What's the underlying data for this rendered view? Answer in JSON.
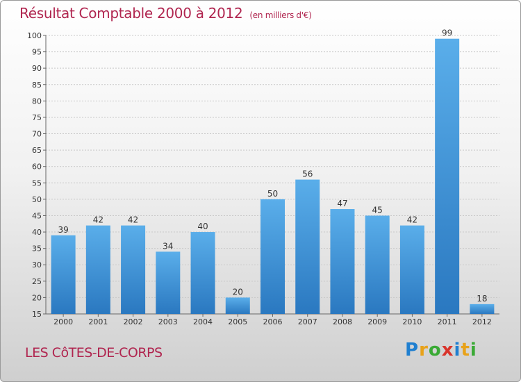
{
  "chart_data": {
    "type": "bar",
    "title": "Résultat Comptable 2000 à 2012",
    "subtitle": "(en milliers d'€)",
    "categories": [
      "2000",
      "2001",
      "2002",
      "2003",
      "2004",
      "2005",
      "2006",
      "2007",
      "2008",
      "2009",
      "2010",
      "2011",
      "2012"
    ],
    "values": [
      39,
      42,
      42,
      34,
      40,
      20,
      50,
      56,
      47,
      45,
      42,
      99,
      18
    ],
    "ylim": [
      15,
      100
    ],
    "yticks": [
      15,
      20,
      25,
      30,
      35,
      40,
      45,
      50,
      55,
      60,
      65,
      70,
      75,
      80,
      85,
      90,
      95,
      100
    ],
    "grid": true,
    "bar_color": "#3a8fd9",
    "title_color": "#b0254f"
  },
  "commune": "LES CôTES-DE-CORPS",
  "logo": {
    "letters": [
      "P",
      "r",
      "o",
      "x",
      "i",
      "t",
      "i"
    ],
    "colors": [
      "#1f7fd0",
      "#e8a21a",
      "#3aaa35",
      "#d9342b",
      "#1f7fd0",
      "#e8a21a",
      "#3aaa35"
    ]
  }
}
